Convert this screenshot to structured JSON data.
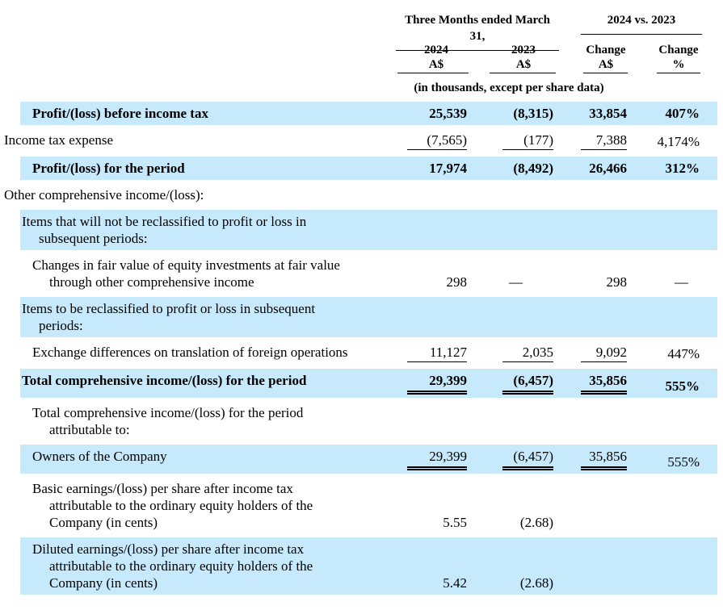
{
  "page": {
    "background": "#ffffff",
    "highlight_color": "#c6e9fb",
    "text_color": "#000000"
  },
  "header": {
    "group1": "Three Months ended March 31,",
    "group2": "2024 vs. 2023",
    "columns": [
      "2024\nA$",
      "2023\nA$",
      "Change\nA$",
      "Change\n%"
    ],
    "note": "(in thousands, except per share data)"
  },
  "rows": [
    {
      "label": "Profit/(loss) before income tax",
      "indent": 2,
      "bold": true,
      "highlight": true,
      "values": [
        "25,539",
        "(8,315)",
        "33,854",
        "407%"
      ],
      "underline": [
        "",
        "",
        "",
        ""
      ]
    },
    {
      "label": "Income tax expense",
      "indent": 0,
      "bold": false,
      "highlight": false,
      "values": [
        "(7,565)",
        "(177)",
        "7,388",
        "4,174%"
      ],
      "underline": [
        "s",
        "s",
        "s",
        ""
      ]
    },
    {
      "label": "Profit/(loss) for the period",
      "indent": 2,
      "bold": true,
      "highlight": true,
      "values": [
        "17,974",
        "(8,492)",
        "26,466",
        "312%"
      ],
      "underline": [
        "",
        "",
        "",
        ""
      ]
    },
    {
      "label": "Other comprehensive income/(loss):",
      "indent": 0,
      "bold": false,
      "highlight": false,
      "values": [
        "",
        "",
        "",
        ""
      ],
      "underline": [
        "",
        "",
        "",
        ""
      ]
    },
    {
      "label": "Items that will not be reclassified to profit or loss in\nsubsequent periods:",
      "indent": 1,
      "bold": false,
      "highlight": true,
      "values": [
        "",
        "",
        "",
        ""
      ],
      "underline": [
        "",
        "",
        "",
        ""
      ]
    },
    {
      "label": "Changes in fair value of equity investments at fair value\nthrough other comprehensive income",
      "indent": 2,
      "bold": false,
      "highlight": false,
      "values": [
        "298",
        "—",
        "298",
        "—"
      ],
      "underline": [
        "",
        "",
        "",
        ""
      ]
    },
    {
      "label": "Items to be reclassified to profit or loss in subsequent\nperiods:",
      "indent": 1,
      "bold": false,
      "highlight": true,
      "values": [
        "",
        "",
        "",
        ""
      ],
      "underline": [
        "",
        "",
        "",
        ""
      ]
    },
    {
      "label": "Exchange differences on translation of foreign operations",
      "indent": 2,
      "bold": false,
      "highlight": false,
      "values": [
        "11,127",
        "2,035",
        "9,092",
        "447%"
      ],
      "underline": [
        "s",
        "s",
        "s",
        ""
      ]
    },
    {
      "label": "Total comprehensive income/(loss) for the period",
      "indent": 1,
      "bold": true,
      "highlight": true,
      "values": [
        "29,399",
        "(6,457)",
        "35,856",
        "555%"
      ],
      "underline": [
        "d",
        "d",
        "d",
        ""
      ]
    },
    {
      "label": "Total comprehensive income/(loss) for the period\nattributable to:",
      "indent": 2,
      "bold": false,
      "highlight": false,
      "values": [
        "",
        "",
        "",
        ""
      ],
      "underline": [
        "",
        "",
        "",
        ""
      ]
    },
    {
      "label": "Owners of the Company",
      "indent": 2,
      "bold": false,
      "highlight": true,
      "values": [
        "29,399",
        "(6,457)",
        "35,856",
        "555%"
      ],
      "underline": [
        "d",
        "d",
        "d",
        ""
      ]
    },
    {
      "label": "Basic earnings/(loss) per share after income tax\nattributable to the ordinary equity holders of the\nCompany (in cents)",
      "indent": 2,
      "bold": false,
      "highlight": false,
      "values": [
        "5.55",
        "(2.68)",
        "",
        ""
      ],
      "underline": [
        "",
        "",
        "",
        ""
      ]
    },
    {
      "label": "Diluted earnings/(loss) per share after income tax\nattributable to the ordinary equity holders of the\nCompany (in cents)",
      "indent": 2,
      "bold": false,
      "highlight": true,
      "values": [
        "5.42",
        "(2.68)",
        "",
        ""
      ],
      "underline": [
        "",
        "",
        "",
        ""
      ]
    }
  ]
}
